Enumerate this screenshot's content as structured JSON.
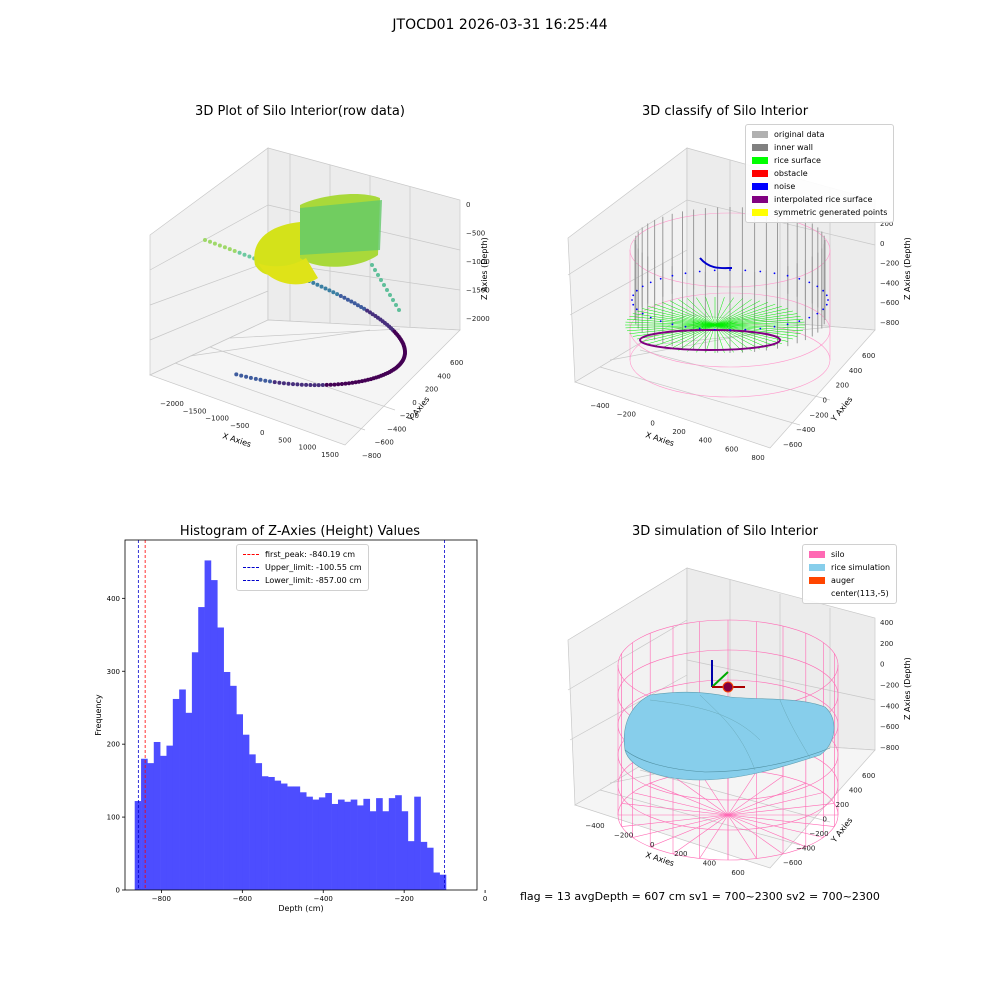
{
  "suptitle": "JTOCD01 2026-03-31 16:25:44",
  "footer": "flag = 13   avgDepth = 607 cm  sv1 = 700~2300  sv2 = 700~2300",
  "chart_data": [
    {
      "type": "scatter",
      "title": "3D Plot of Silo Interior(row data)",
      "xlabel": "X Axies",
      "ylabel": "Y Axies",
      "zlabel": "Z Axies (Depth)",
      "x_ticks": [
        "−2000",
        "−1500",
        "−1000",
        "−500",
        "0",
        "500",
        "1000",
        "1500"
      ],
      "y_ticks": [
        "−800",
        "−600",
        "−400",
        "−200",
        "0",
        "200",
        "400",
        "600"
      ],
      "z_ticks": [
        "0",
        "−500",
        "−1000",
        "−1500",
        "−2000"
      ],
      "colormap": "viridis"
    },
    {
      "type": "scatter",
      "title": "3D classify of Silo Interior",
      "xlabel": "X Axies",
      "ylabel": "Y Axies",
      "zlabel": "Z Axies (Depth)",
      "x_ticks": [
        "−400",
        "−200",
        "0",
        "200",
        "400",
        "600",
        "800"
      ],
      "y_ticks": [
        "−600",
        "−400",
        "−200",
        "0",
        "200",
        "400",
        "600"
      ],
      "z_ticks": [
        "200",
        "0",
        "−200",
        "−400",
        "−600",
        "−800"
      ],
      "legend": [
        {
          "label": "original data",
          "color": "#b0b0b0"
        },
        {
          "label": "inner wall",
          "color": "#808080"
        },
        {
          "label": "rice surface",
          "color": "#00ff00"
        },
        {
          "label": "obstacle",
          "color": "#ff0000"
        },
        {
          "label": "noise",
          "color": "#0000ff"
        },
        {
          "label": "interpolated rice surface",
          "color": "#800080"
        },
        {
          "label": "symmetric generated points",
          "color": "#ffff00"
        }
      ]
    },
    {
      "type": "bar",
      "title": "Histogram of Z-Axies (Height) Values",
      "xlabel": "Depth (cm)",
      "ylabel": "Frequency",
      "xlim": [
        -890,
        -20
      ],
      "ylim": [
        0,
        480
      ],
      "x_ticks": [
        -800,
        -600,
        -400,
        -200,
        0
      ],
      "y_ticks": [
        0,
        100,
        200,
        300,
        400
      ],
      "bar_color": "#4d4dff",
      "bin_start": -866,
      "bin_width": 15.7,
      "values": [
        122,
        180,
        174,
        203,
        184,
        198,
        262,
        275,
        243,
        326,
        388,
        452,
        425,
        360,
        299,
        280,
        241,
        213,
        186,
        174,
        156,
        155,
        150,
        146,
        142,
        142,
        134,
        128,
        124,
        127,
        133,
        118,
        124,
        121,
        124,
        116,
        125,
        108,
        126,
        108,
        126,
        130,
        108,
        67,
        128,
        66,
        58,
        24,
        21
      ],
      "vlines": [
        {
          "label": "first_peak: -840.19 cm",
          "x": -840.19,
          "color": "#ff0000"
        },
        {
          "label": "Upper_limit: -100.55 cm",
          "x": -100.55,
          "color": "#0000cc"
        },
        {
          "label": "Lower_limit: -857.00 cm",
          "x": -857.0,
          "color": "#0000cc"
        }
      ],
      "legend_position": "upper center"
    },
    {
      "type": "scatter",
      "title": "3D simulation of Silo Interior",
      "xlabel": "X Axies",
      "ylabel": "Y Axies",
      "zlabel": "Z Axies (Depth)",
      "x_ticks": [
        "−400",
        "−200",
        "0",
        "200",
        "400",
        "600"
      ],
      "y_ticks": [
        "−600",
        "−400",
        "−200",
        "0",
        "200",
        "400",
        "600"
      ],
      "z_ticks": [
        "400",
        "200",
        "0",
        "−200",
        "−400",
        "−600",
        "−800"
      ],
      "legend": [
        {
          "label": "silo",
          "color": "#ff69b4"
        },
        {
          "label": "rice simulation",
          "color": "#87ceeb"
        },
        {
          "label": "auger",
          "color": "#ff4500"
        },
        {
          "label": "center(113,-5)",
          "color": ""
        }
      ]
    }
  ]
}
